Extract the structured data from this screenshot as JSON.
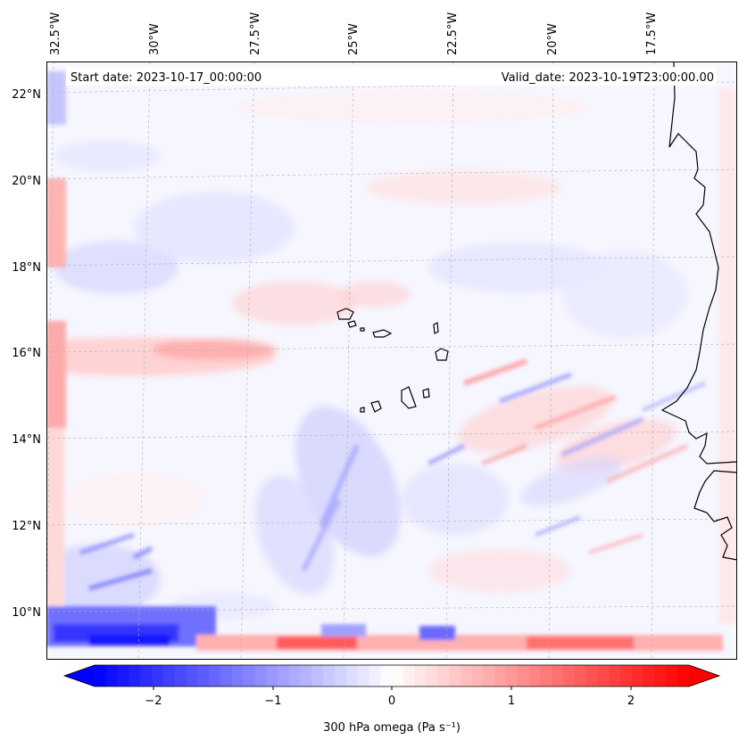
{
  "header": {
    "start_label": "Start date: 2023-10-17_00:00:00",
    "valid_label": "Valid_date: 2023-10-19T23:00:00.00"
  },
  "map": {
    "lon_labels": [
      "32.5°W",
      "30°W",
      "27.5°W",
      "25°W",
      "22.5°W",
      "20°W",
      "17.5°W"
    ],
    "lat_labels": [
      "22°N",
      "20°N",
      "18°N",
      "16°N",
      "14°N",
      "12°N",
      "10°N"
    ],
    "extent": {
      "lon_min": -32.7,
      "lon_max": -15.8,
      "lat_min": 8.9,
      "lat_max": 22.7
    },
    "grid": true,
    "coastline_color": "#000000"
  },
  "colorbar": {
    "label": "300 hPa omega (Pa s⁻¹)",
    "ticks": [
      "−2",
      "−1",
      "0",
      "1",
      "2"
    ],
    "tick_values": [
      -2,
      -1,
      0,
      1,
      2
    ],
    "range": [
      -2.6,
      2.6
    ],
    "colors": {
      "min": "#0000ff",
      "mid": "#ffffff",
      "max": "#ff0000"
    },
    "extend": "both"
  }
}
